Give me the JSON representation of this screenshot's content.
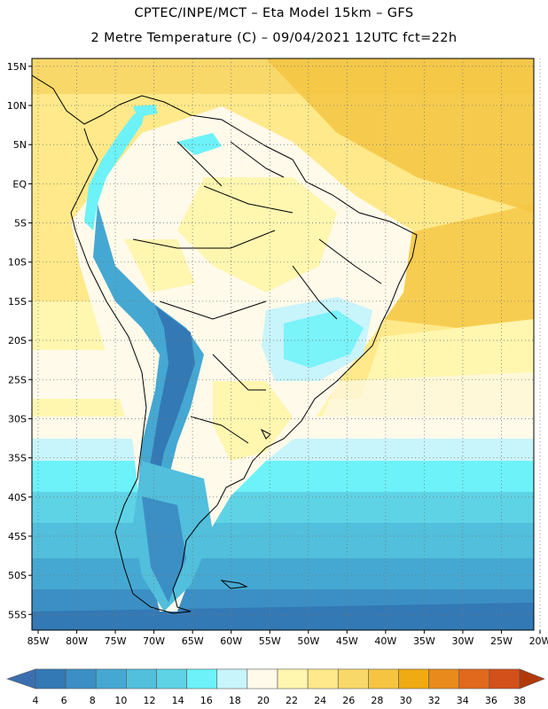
{
  "title": {
    "line1": "CPTEC/INPE/MCT –  Eta Model 15km – GFS",
    "line2": "2 Metre Temperature (C) – 09/04/2021 12UTC fct=22h"
  },
  "map_data": {
    "region": "South America",
    "lon_range": [
      -85,
      -20
    ],
    "lat_range": [
      -57,
      16
    ],
    "lat_ticks": [
      {
        "v": 15,
        "label": "15N"
      },
      {
        "v": 10,
        "label": "10N"
      },
      {
        "v": 5,
        "label": "5N"
      },
      {
        "v": 0,
        "label": "EQ"
      },
      {
        "v": -5,
        "label": "5S"
      },
      {
        "v": -10,
        "label": "10S"
      },
      {
        "v": -15,
        "label": "15S"
      },
      {
        "v": -20,
        "label": "20S"
      },
      {
        "v": -25,
        "label": "25S"
      },
      {
        "v": -30,
        "label": "30S"
      },
      {
        "v": -35,
        "label": "35S"
      },
      {
        "v": -40,
        "label": "40S"
      },
      {
        "v": -45,
        "label": "45S"
      },
      {
        "v": -50,
        "label": "50S"
      },
      {
        "v": -55,
        "label": "55S"
      }
    ],
    "lon_ticks": [
      {
        "v": -85,
        "label": "85W"
      },
      {
        "v": -80,
        "label": "80W"
      },
      {
        "v": -75,
        "label": "75W"
      },
      {
        "v": -70,
        "label": "70W"
      },
      {
        "v": -65,
        "label": "65W"
      },
      {
        "v": -60,
        "label": "60W"
      },
      {
        "v": -55,
        "label": "55W"
      },
      {
        "v": -50,
        "label": "50W"
      },
      {
        "v": -45,
        "label": "45W"
      },
      {
        "v": -40,
        "label": "40W"
      },
      {
        "v": -35,
        "label": "35W"
      },
      {
        "v": -30,
        "label": "30W"
      },
      {
        "v": -25,
        "label": "25W"
      },
      {
        "v": -20,
        "label": "20W"
      }
    ],
    "grid": true
  },
  "colorbar": {
    "labels": [
      "4",
      "6",
      "8",
      "10",
      "12",
      "14",
      "16",
      "18",
      "20",
      "22",
      "24",
      "26",
      "28",
      "30",
      "32",
      "34",
      "36",
      "38"
    ],
    "colors": [
      "#2a5fa0",
      "#3379b5",
      "#3c8fc4",
      "#45a8d2",
      "#52bfdc",
      "#5fd3e6",
      "#6cf2f8",
      "#c8f4fb",
      "#fffaea",
      "#fff6b0",
      "#ffe98a",
      "#f9d86a",
      "#f5c542",
      "#f0aa12",
      "#e98a1c",
      "#e0691e",
      "#d4501a",
      "#c03a0d"
    ],
    "low_arrow_color": "#3b6fb0",
    "high_arrow_color": "#b23a0a"
  }
}
